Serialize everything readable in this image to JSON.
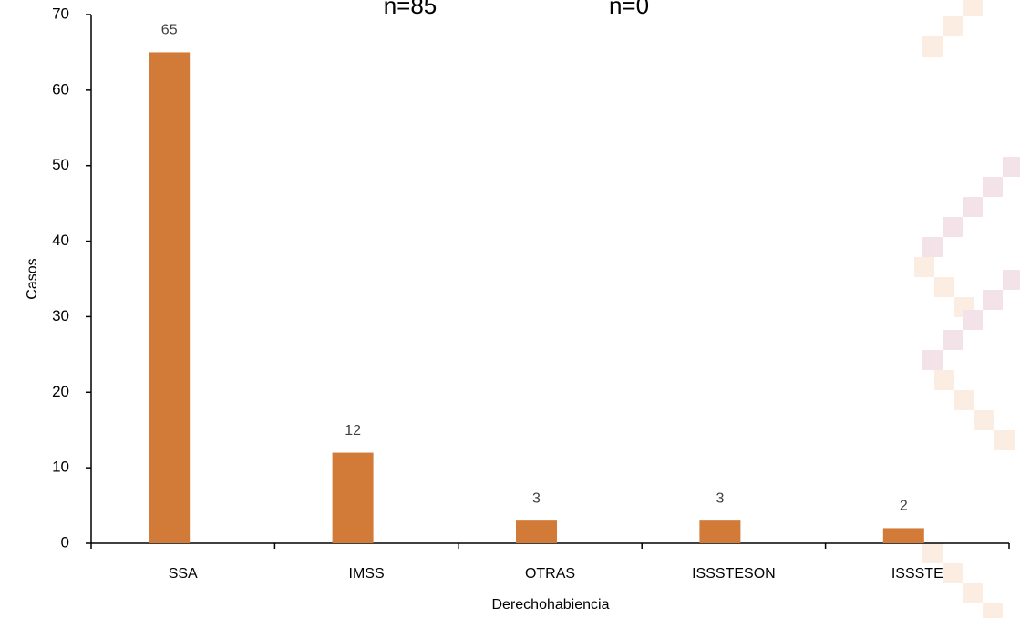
{
  "chart_data": {
    "type": "bar",
    "annotations": [
      "n=85",
      "n=0"
    ],
    "x_label": "Derechohabiencia",
    "y_label": "Casos",
    "categories": [
      "SSA",
      "IMSS",
      "OTRAS",
      "ISSSTESON",
      "ISSSTE"
    ],
    "values": [
      65,
      12,
      3,
      3,
      2
    ],
    "color": "#d27b39",
    "ylim": [
      0,
      70
    ],
    "yticks": [
      0,
      10,
      20,
      30,
      40,
      50,
      60,
      70
    ],
    "data_labels": true
  }
}
